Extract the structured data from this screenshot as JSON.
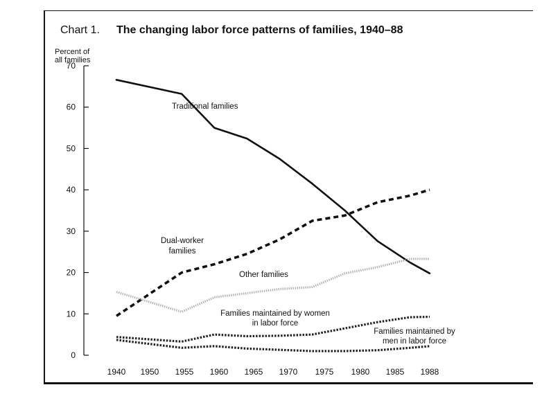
{
  "chart_data": {
    "type": "line",
    "title_prefix": "Chart 1.",
    "title": "The changing labor force patterns of families, 1940–88",
    "ylabel_lines": [
      "Percent of",
      "all families"
    ],
    "xlabel": "",
    "ylim": [
      0,
      70
    ],
    "y_ticks": [
      0,
      10,
      20,
      30,
      40,
      50,
      60,
      70
    ],
    "x_ticks": [
      "1940",
      "1950",
      "1955",
      "1960",
      "1965",
      "1970",
      "1975",
      "1980",
      "1985",
      "1988"
    ],
    "grid": false,
    "legend": "none (series labeled directly on chart)",
    "series": [
      {
        "name": "Traditional families",
        "label_lines": [
          "Traditional families"
        ],
        "style": "solid-thick",
        "color": "#111111",
        "points": [
          [
            1940,
            66.6
          ],
          [
            1950,
            63.2
          ],
          [
            1955,
            55.0
          ],
          [
            1960,
            52.4
          ],
          [
            1965,
            47.5
          ],
          [
            1970,
            41.5
          ],
          [
            1975,
            35.0
          ],
          [
            1980,
            27.6
          ],
          [
            1985,
            22.4
          ],
          [
            1988,
            19.8
          ]
        ]
      },
      {
        "name": "Dual-worker families",
        "label_lines": [
          "Dual-worker",
          "families"
        ],
        "style": "dashed",
        "color": "#111111",
        "points": [
          [
            1940,
            9.5
          ],
          [
            1950,
            20.0
          ],
          [
            1955,
            22.0
          ],
          [
            1960,
            24.5
          ],
          [
            1965,
            28.0
          ],
          [
            1970,
            32.5
          ],
          [
            1975,
            33.8
          ],
          [
            1980,
            37.0
          ],
          [
            1985,
            38.6
          ],
          [
            1988,
            40.0
          ]
        ]
      },
      {
        "name": "Other families",
        "label_lines": [
          "Other families"
        ],
        "style": "stippled",
        "color": "#9a9a9a",
        "points": [
          [
            1940,
            15.3
          ],
          [
            1950,
            10.5
          ],
          [
            1955,
            14.0
          ],
          [
            1960,
            15.0
          ],
          [
            1965,
            16.0
          ],
          [
            1970,
            16.5
          ],
          [
            1975,
            19.8
          ],
          [
            1980,
            21.3
          ],
          [
            1985,
            23.3
          ],
          [
            1988,
            23.3
          ]
        ]
      },
      {
        "name": "Families maintained by women in labor force",
        "label_lines": [
          "Families maintained by women",
          "in labor force"
        ],
        "style": "hatched",
        "color": "#222222",
        "points": [
          [
            1940,
            4.4
          ],
          [
            1950,
            3.3
          ],
          [
            1955,
            5.0
          ],
          [
            1960,
            4.6
          ],
          [
            1965,
            4.7
          ],
          [
            1970,
            5.0
          ],
          [
            1975,
            6.5
          ],
          [
            1980,
            8.0
          ],
          [
            1985,
            9.2
          ],
          [
            1988,
            9.3
          ]
        ]
      },
      {
        "name": "Families maintained by men in labor force",
        "label_lines": [
          "Families maintained by",
          "men in labor force"
        ],
        "style": "hatched",
        "color": "#222222",
        "points": [
          [
            1940,
            3.7
          ],
          [
            1950,
            1.8
          ],
          [
            1955,
            2.2
          ],
          [
            1960,
            1.6
          ],
          [
            1965,
            1.3
          ],
          [
            1970,
            1.0
          ],
          [
            1975,
            1.0
          ],
          [
            1980,
            1.2
          ],
          [
            1985,
            1.8
          ],
          [
            1988,
            2.2
          ]
        ]
      }
    ]
  }
}
